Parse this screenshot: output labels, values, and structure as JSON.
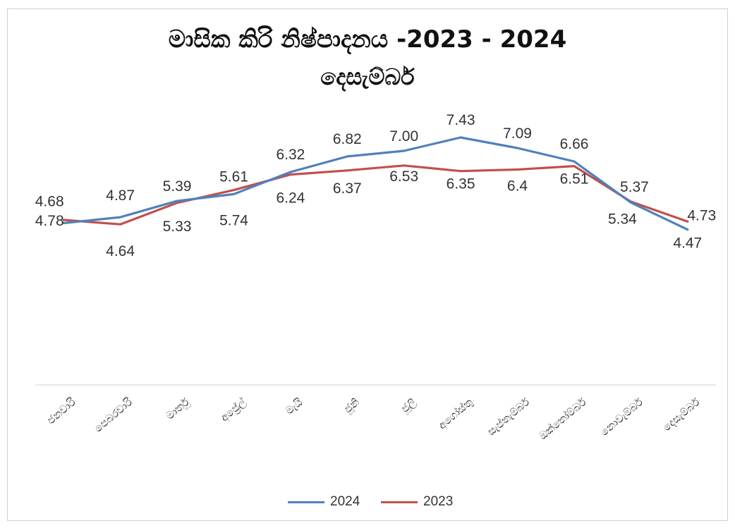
{
  "chart_data": {
    "type": "line",
    "title": "මාසික කිරි නිෂ්පාදනය  -2023 - 2024",
    "subtitle": "දෙසැම්බර්",
    "categories": [
      "ජනවාරි",
      "පෙබරවාරි",
      "මාර්තු",
      "අප්‍රේල්",
      "මැයි",
      "ජූනි",
      "ජූලි",
      "අගෝස්තු",
      "සැප්තැම්බර්",
      "ඔක්තෝම්බර්",
      "නොවැම්බර්",
      "දෙසැම්බර්"
    ],
    "series": [
      {
        "name": "2024",
        "color": "#4f81bd",
        "values": [
          4.68,
          4.87,
          5.39,
          5.61,
          6.32,
          6.82,
          7.0,
          7.43,
          7.09,
          6.66,
          5.34,
          4.47
        ]
      },
      {
        "name": "2023",
        "color": "#c0504d",
        "values": [
          4.78,
          4.64,
          5.33,
          5.74,
          6.24,
          6.37,
          6.53,
          6.35,
          6.4,
          6.51,
          5.37,
          4.73
        ]
      }
    ],
    "value_labels": {
      "2024": [
        "4.68",
        "4.87",
        "5.39",
        "5.61",
        "6.32",
        "6.82",
        "7.00",
        "7.43",
        "7.09",
        "6.66",
        "5.34",
        "4.47"
      ],
      "2023": [
        "4.78",
        "4.64",
        "5.33",
        "5.74",
        "6.24",
        "6.37",
        "6.53",
        "6.35",
        "6.4",
        "6.51",
        "5.37",
        "4.73"
      ]
    },
    "legend": {
      "position": "bottom",
      "entries": [
        "2024",
        "2023"
      ]
    },
    "grid": false,
    "xlabel": "",
    "ylabel": ""
  }
}
